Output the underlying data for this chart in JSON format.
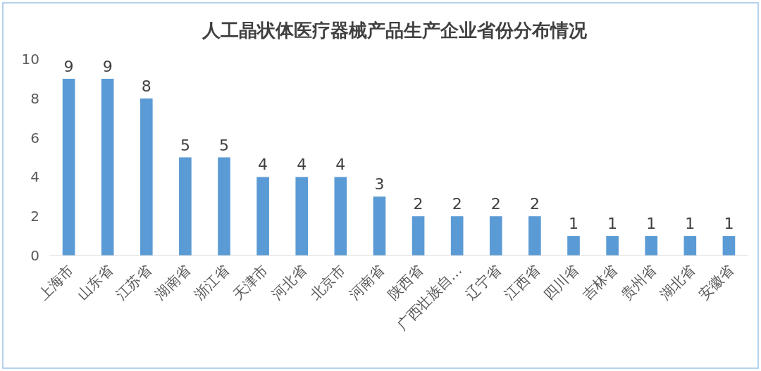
{
  "chart_data": {
    "type": "bar",
    "title": "人工晶状体医疗器械产品生产企业省份分布情况",
    "categories": [
      "上海市",
      "山东省",
      "江苏省",
      "湖南省",
      "浙江省",
      "天津市",
      "河北省",
      "北京市",
      "河南省",
      "陕西省",
      "广西壮族自…",
      "辽宁省",
      "江西省",
      "四川省",
      "吉林省",
      "贵州省",
      "湖北省",
      "安徽省"
    ],
    "values": [
      9,
      9,
      8,
      5,
      5,
      4,
      4,
      4,
      3,
      2,
      2,
      2,
      2,
      1,
      1,
      1,
      1,
      1
    ],
    "color": "#5b9bd5",
    "ylim": [
      0,
      10
    ],
    "yticks": [
      0,
      2,
      4,
      6,
      8,
      10
    ],
    "data_labels": true
  }
}
